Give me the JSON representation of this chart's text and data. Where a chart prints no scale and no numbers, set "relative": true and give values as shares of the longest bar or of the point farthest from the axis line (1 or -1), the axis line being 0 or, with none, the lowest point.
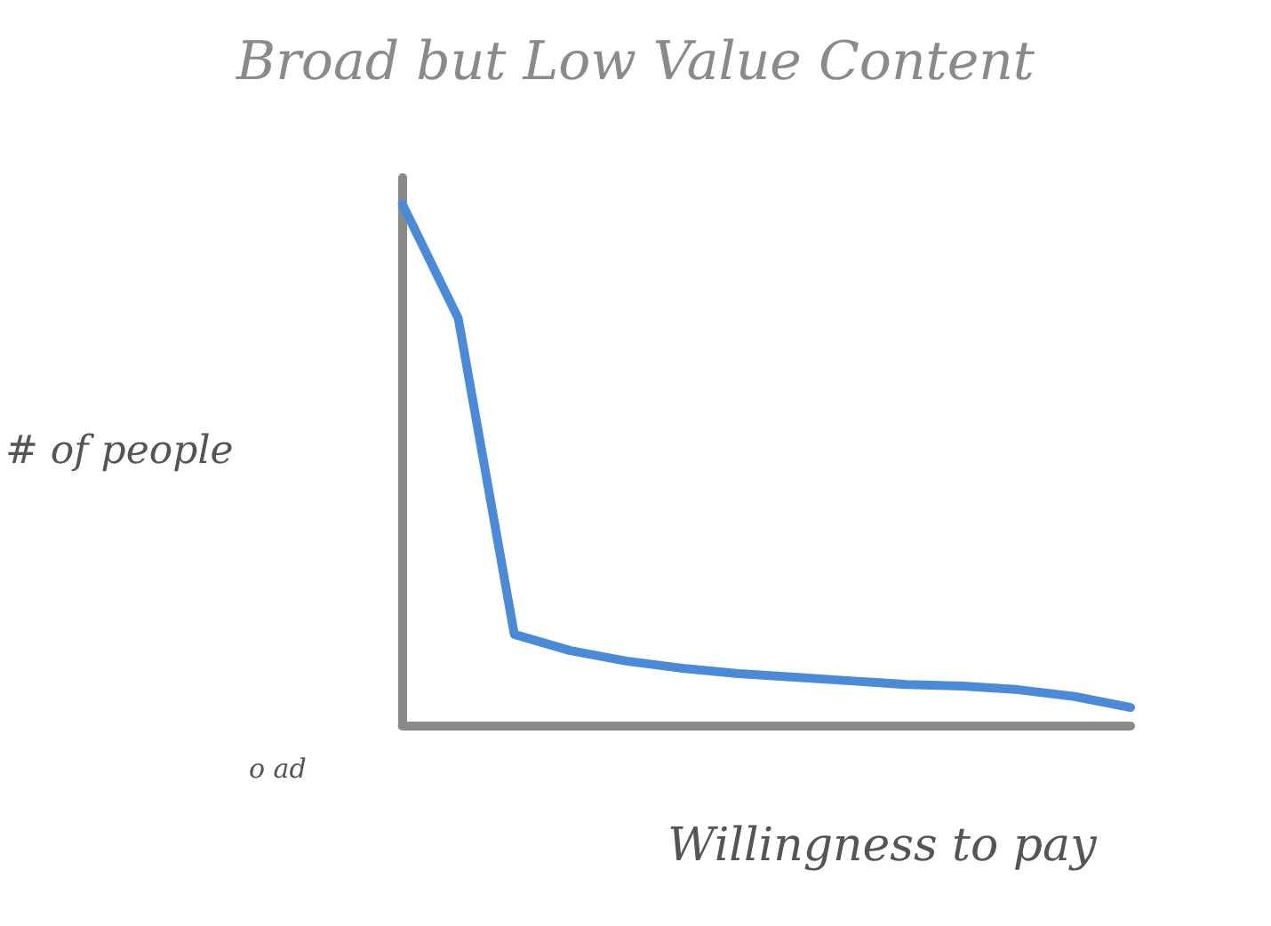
{
  "chart_data": {
    "type": "line",
    "title": "Broad but Low Value Content",
    "xlabel": "Willingness to pay",
    "ylabel": "# of people",
    "relative": true,
    "annotations": [
      "o ad"
    ],
    "categories": [
      null,
      null,
      null,
      null,
      null,
      null,
      null,
      null,
      null,
      null,
      null,
      null,
      null,
      null
    ],
    "series": [
      {
        "color": "#4a8ad8",
        "values": [
          1.0,
          0.78,
          0.174,
          0.143,
          0.123,
          0.109,
          0.099,
          0.092,
          0.085,
          0.078,
          0.075,
          0.068,
          0.055,
          0.034
        ]
      }
    ],
    "marker": "none",
    "line_style": "solid"
  }
}
